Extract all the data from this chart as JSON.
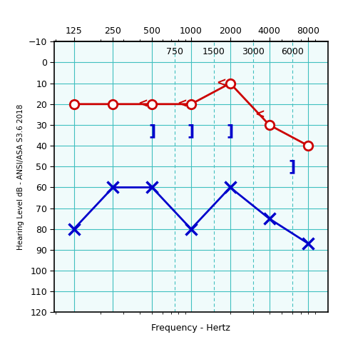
{
  "xlabel": "Frequency - Hertz",
  "ylabel": "Hearing Level dB - ANSI/ASA S3.6 2018",
  "bg_color": "#ffffff",
  "plot_bg_color": "#f0fbfb",
  "grid_solid_color": "#40c0c0",
  "grid_dash_color": "#80d8d8",
  "freq_major": [
    125,
    250,
    500,
    1000,
    2000,
    4000,
    8000
  ],
  "freq_minor": [
    750,
    1500,
    3000,
    6000
  ],
  "ylim": [
    -10,
    120
  ],
  "yticks": [
    -10,
    0,
    10,
    20,
    30,
    40,
    50,
    60,
    70,
    80,
    90,
    100,
    110,
    120
  ],
  "red_freqs": [
    125,
    250,
    500,
    1000,
    2000,
    4000,
    8000
  ],
  "red_values": [
    20,
    20,
    20,
    20,
    10,
    30,
    40
  ],
  "red_color": "#cc0000",
  "blue_freqs": [
    125,
    250,
    500,
    1000,
    2000,
    4000,
    8000
  ],
  "blue_values": [
    80,
    60,
    60,
    80,
    60,
    75,
    87
  ],
  "blue_color": "#0000cc",
  "bone_red_freqs": [
    500,
    1000,
    2000,
    4000
  ],
  "bone_red_values": [
    20,
    20,
    10,
    25
  ],
  "bracket_freqs": [
    500,
    1000,
    2000,
    6000
  ],
  "bracket_values": [
    33,
    33,
    33,
    50
  ],
  "xlim_left": 88,
  "xlim_right": 11314
}
